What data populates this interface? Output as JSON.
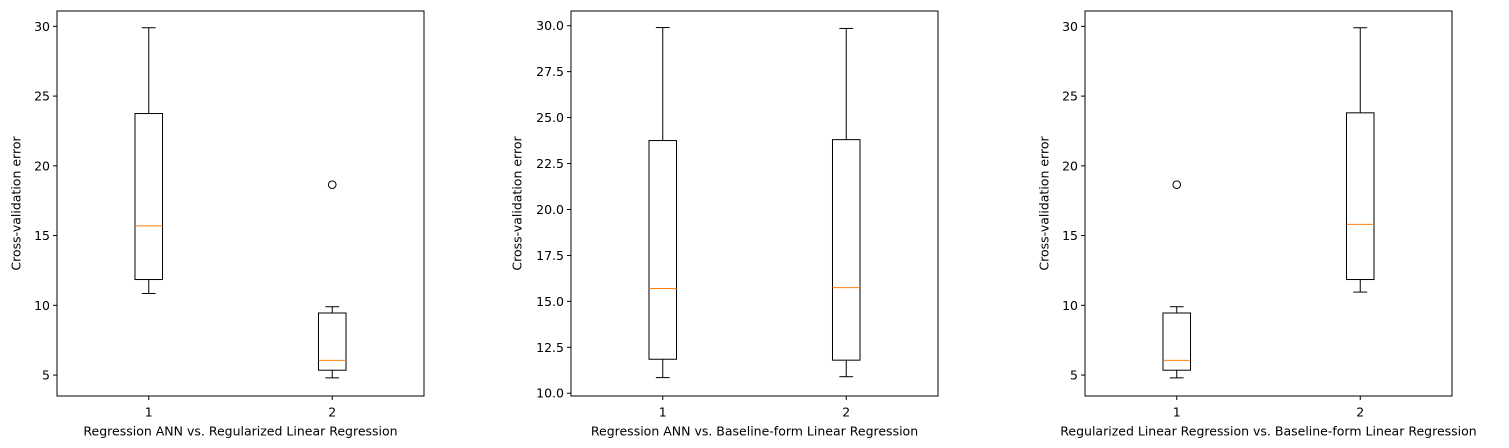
{
  "chart_data": [
    {
      "type": "boxplot",
      "xlabel": "Regression ANN vs. Regularized Linear Regression",
      "ylabel": "Cross-validation error",
      "ylim": [
        3.5,
        31.1
      ],
      "yticks": [
        5,
        10,
        15,
        20,
        25,
        30
      ],
      "ytick_labels": [
        "5",
        "10",
        "15",
        "20",
        "25",
        "30"
      ],
      "categories": [
        "1",
        "2"
      ],
      "boxes": [
        {
          "whislo": 10.85,
          "q1": 11.85,
          "med": 15.7,
          "q3": 23.75,
          "whishi": 29.9,
          "fliers": []
        },
        {
          "whislo": 4.8,
          "q1": 5.35,
          "med": 6.05,
          "q3": 9.45,
          "whishi": 9.9,
          "fliers": [
            18.65
          ]
        }
      ]
    },
    {
      "type": "boxplot",
      "xlabel": "Regression ANN vs. Baseline-form Linear Regression",
      "ylabel": "Cross-validation error",
      "ylim": [
        9.85,
        30.8
      ],
      "yticks": [
        10.0,
        12.5,
        15.0,
        17.5,
        20.0,
        22.5,
        25.0,
        27.5,
        30.0
      ],
      "ytick_labels": [
        "10.0",
        "12.5",
        "15.0",
        "17.5",
        "20.0",
        "22.5",
        "25.0",
        "27.5",
        "30.0"
      ],
      "categories": [
        "1",
        "2"
      ],
      "boxes": [
        {
          "whislo": 10.85,
          "q1": 11.85,
          "med": 15.7,
          "q3": 23.75,
          "whishi": 29.9,
          "fliers": []
        },
        {
          "whislo": 10.9,
          "q1": 11.8,
          "med": 15.75,
          "q3": 23.8,
          "whishi": 29.85,
          "fliers": []
        }
      ]
    },
    {
      "type": "boxplot",
      "xlabel": "Regularized Linear Regression vs. Baseline-form Linear Regression",
      "ylabel": "Cross-validation error",
      "ylim": [
        3.5,
        31.1
      ],
      "yticks": [
        5,
        10,
        15,
        20,
        25,
        30
      ],
      "ytick_labels": [
        "5",
        "10",
        "15",
        "20",
        "25",
        "30"
      ],
      "categories": [
        "1",
        "2"
      ],
      "boxes": [
        {
          "whislo": 4.8,
          "q1": 5.35,
          "med": 6.05,
          "q3": 9.45,
          "whishi": 9.9,
          "fliers": [
            18.65
          ]
        },
        {
          "whislo": 10.95,
          "q1": 11.85,
          "med": 15.8,
          "q3": 23.8,
          "whishi": 29.9,
          "fliers": []
        }
      ]
    }
  ],
  "colors": {
    "box": "#000000",
    "median": "#ff7f0e",
    "axes": "#000000"
  }
}
